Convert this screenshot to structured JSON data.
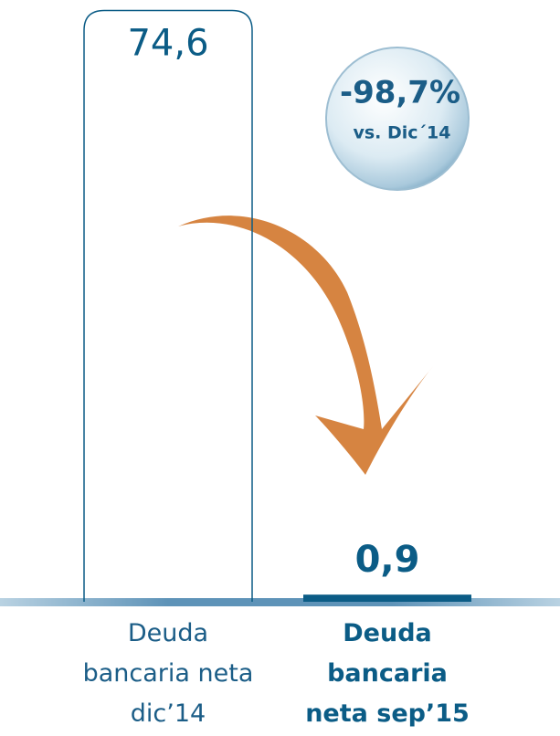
{
  "chart_data": {
    "type": "bar",
    "categories": [
      "Deuda bancaria neta dic’14",
      "Deuda bancaria neta sep’15"
    ],
    "values": [
      74.6,
      0.9
    ],
    "value_labels": [
      "74,6",
      "0,9"
    ],
    "color": "#0b5c86",
    "fill_styles": [
      "outline",
      "solid"
    ],
    "ylim": [
      0,
      75
    ],
    "annotation": "-98,7%",
    "annotation_sub": "vs. Dic´14"
  }
}
